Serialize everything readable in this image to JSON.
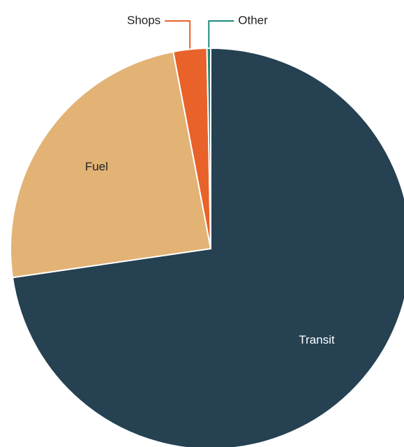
{
  "chart_data": {
    "type": "pie",
    "categories": [
      "Transit",
      "Fuel",
      "Shops",
      "Other"
    ],
    "values": [
      72.7,
      24.3,
      2.7,
      0.3
    ],
    "colors": [
      "#254152",
      "#e2b375",
      "#e8622a",
      "#1e8a7a"
    ]
  }
}
